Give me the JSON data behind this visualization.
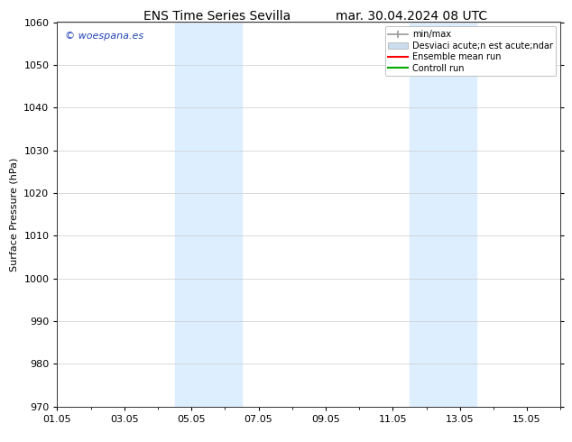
{
  "title_left": "ENS Time Series Sevilla",
  "title_right": "mar. 30.04.2024 08 UTC",
  "ylabel": "Surface Pressure (hPa)",
  "ylim": [
    970,
    1060
  ],
  "yticks": [
    970,
    980,
    990,
    1000,
    1010,
    1020,
    1030,
    1040,
    1050,
    1060
  ],
  "xlim": [
    0,
    15
  ],
  "xtick_labels": [
    "01.05",
    "03.05",
    "05.05",
    "07.05",
    "09.05",
    "11.05",
    "13.05",
    "15.05"
  ],
  "xtick_positions": [
    0,
    2,
    4,
    6,
    8,
    10,
    12,
    14
  ],
  "shaded_regions": [
    {
      "start": 3.5,
      "end": 5.5,
      "color": "#ddeeff"
    },
    {
      "start": 10.5,
      "end": 12.5,
      "color": "#ddeeff"
    }
  ],
  "watermark_text": "© woespana.es",
  "watermark_color": "#2244bb",
  "legend_labels": [
    "min/max",
    "Desviaci acute;n est acute;ndar",
    "Ensemble mean run",
    "Controll run"
  ],
  "legend_colors": [
    "#999999",
    "#ccddf0",
    "#ff0000",
    "#00aa00"
  ],
  "bg_color": "#ffffff",
  "grid_color": "#cccccc",
  "title_fontsize": 10,
  "axis_fontsize": 8,
  "tick_fontsize": 8,
  "legend_fontsize": 7
}
